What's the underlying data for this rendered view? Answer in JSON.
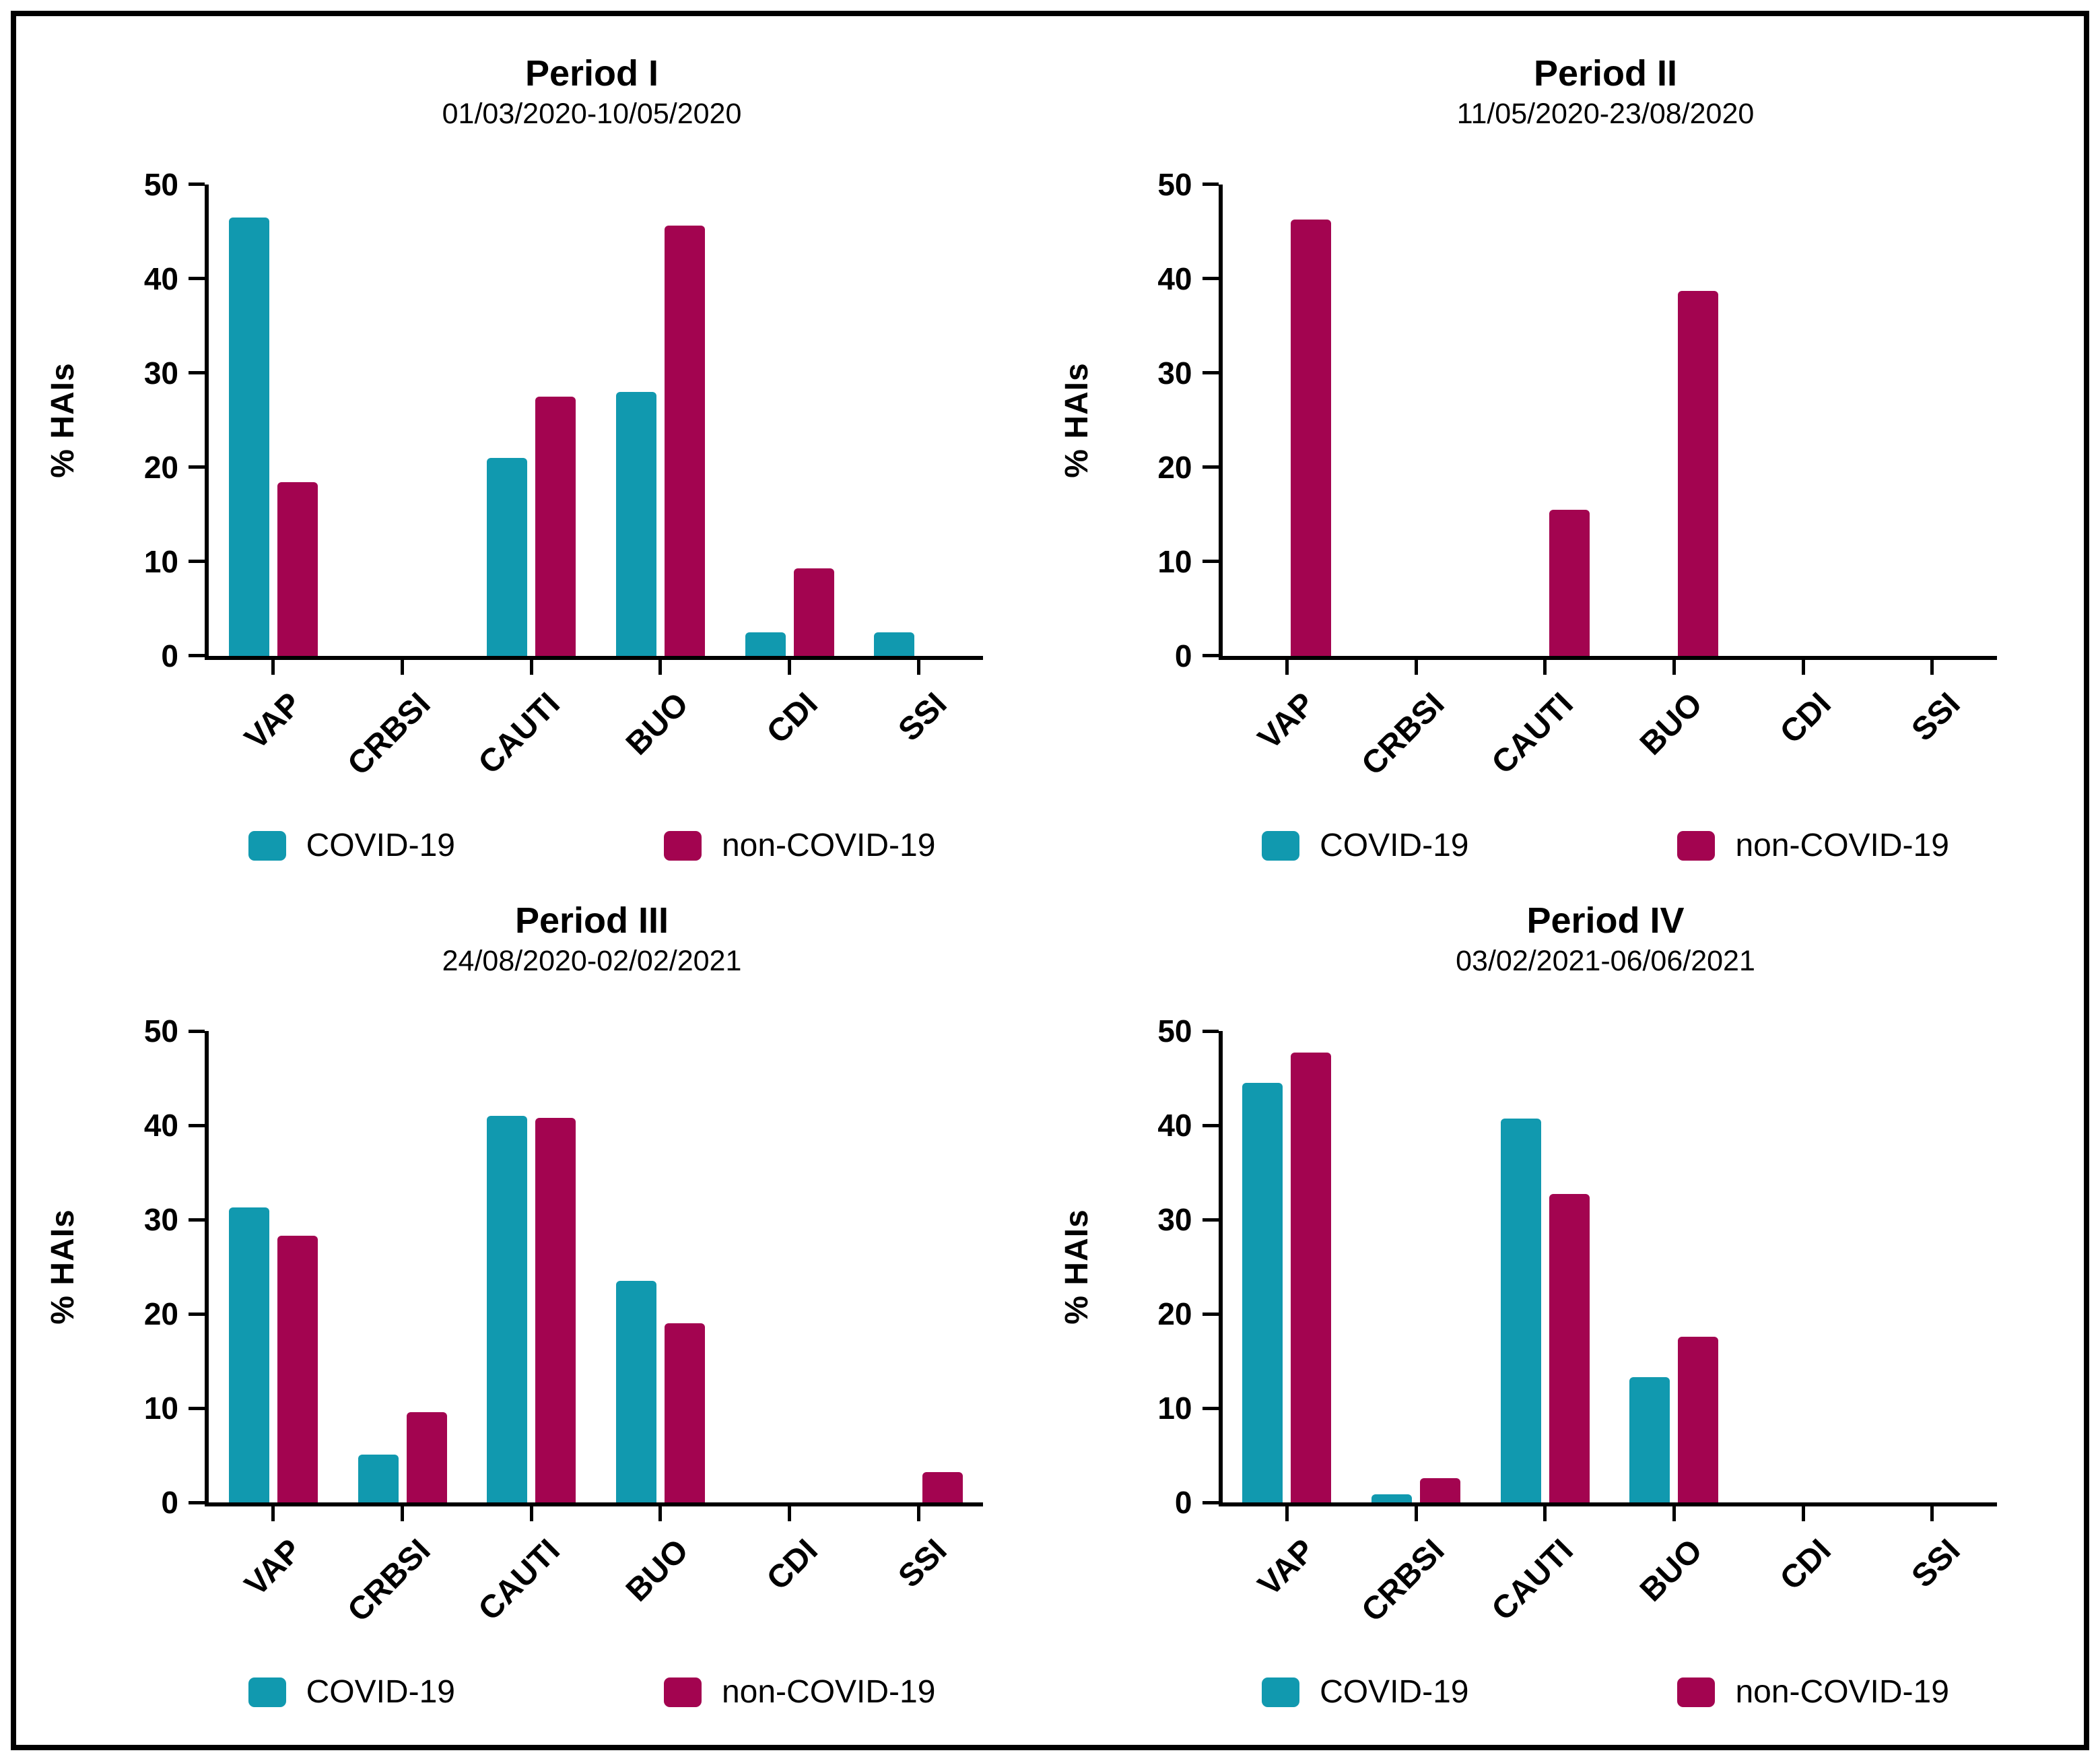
{
  "figure": {
    "description": "Distribution of healthcare-associated infections (% HAIs) in COVID-19 vs non-COVID-19 patients across four pandemic periods",
    "frame_color": "#000000",
    "background_color": "#ffffff"
  },
  "colors": {
    "covid": "#1199AF",
    "non_covid": "#A30450",
    "axis": "#000000"
  },
  "chart_data": [
    {
      "type": "bar",
      "title": "Period I",
      "subtitle": "01/03/2020-10/05/2020",
      "ylabel": "% HAIs",
      "xlabel": "",
      "ylim": [
        0,
        50
      ],
      "yticks": [
        0,
        10,
        20,
        30,
        40,
        50
      ],
      "grid": false,
      "legend_position": "bottom",
      "categories": [
        "VAP",
        "CRBSI",
        "CAUTI",
        "BUO",
        "CDI",
        "SSI"
      ],
      "series": [
        {
          "name": "COVID-19",
          "color": "#1199AF",
          "values": [
            46.5,
            0,
            21.0,
            28.0,
            2.5,
            2.5
          ]
        },
        {
          "name": "non-COVID-19",
          "color": "#A30450",
          "values": [
            18.4,
            0,
            27.5,
            45.6,
            9.3,
            0
          ]
        }
      ]
    },
    {
      "type": "bar",
      "title": "Period II",
      "subtitle": "11/05/2020-23/08/2020",
      "ylabel": "% HAIs",
      "xlabel": "",
      "ylim": [
        0,
        50
      ],
      "yticks": [
        0,
        10,
        20,
        30,
        40,
        50
      ],
      "grid": false,
      "legend_position": "bottom",
      "categories": [
        "VAP",
        "CRBSI",
        "CAUTI",
        "BUO",
        "CDI",
        "SSI"
      ],
      "series": [
        {
          "name": "COVID-19",
          "color": "#1199AF",
          "values": [
            0,
            0,
            0,
            0,
            0,
            0
          ]
        },
        {
          "name": "non-COVID-19",
          "color": "#A30450",
          "values": [
            46.3,
            0,
            15.5,
            38.7,
            0,
            0
          ]
        }
      ]
    },
    {
      "type": "bar",
      "title": "Period III",
      "subtitle": "24/08/2020-02/02/2021",
      "ylabel": "% HAIs",
      "xlabel": "",
      "ylim": [
        0,
        50
      ],
      "yticks": [
        0,
        10,
        20,
        30,
        40,
        50
      ],
      "grid": false,
      "legend_position": "bottom",
      "categories": [
        "VAP",
        "CRBSI",
        "CAUTI",
        "BUO",
        "CDI",
        "SSI"
      ],
      "series": [
        {
          "name": "COVID-19",
          "color": "#1199AF",
          "values": [
            31.3,
            5.1,
            41.0,
            23.5,
            0,
            0
          ]
        },
        {
          "name": "non-COVID-19",
          "color": "#A30450",
          "values": [
            28.3,
            9.6,
            40.8,
            19.0,
            0,
            3.2
          ]
        }
      ]
    },
    {
      "type": "bar",
      "title": "Period IV",
      "subtitle": "03/02/2021-06/06/2021",
      "ylabel": "% HAIs",
      "xlabel": "",
      "ylim": [
        0,
        50
      ],
      "yticks": [
        0,
        10,
        20,
        30,
        40,
        50
      ],
      "grid": false,
      "legend_position": "bottom",
      "categories": [
        "VAP",
        "CRBSI",
        "CAUTI",
        "BUO",
        "CDI",
        "SSI"
      ],
      "series": [
        {
          "name": "COVID-19",
          "color": "#1199AF",
          "values": [
            44.5,
            0.9,
            40.7,
            13.3,
            0,
            0
          ]
        },
        {
          "name": "non-COVID-19",
          "color": "#A30450",
          "values": [
            47.7,
            2.6,
            32.7,
            17.6,
            0,
            0
          ]
        }
      ]
    }
  ]
}
